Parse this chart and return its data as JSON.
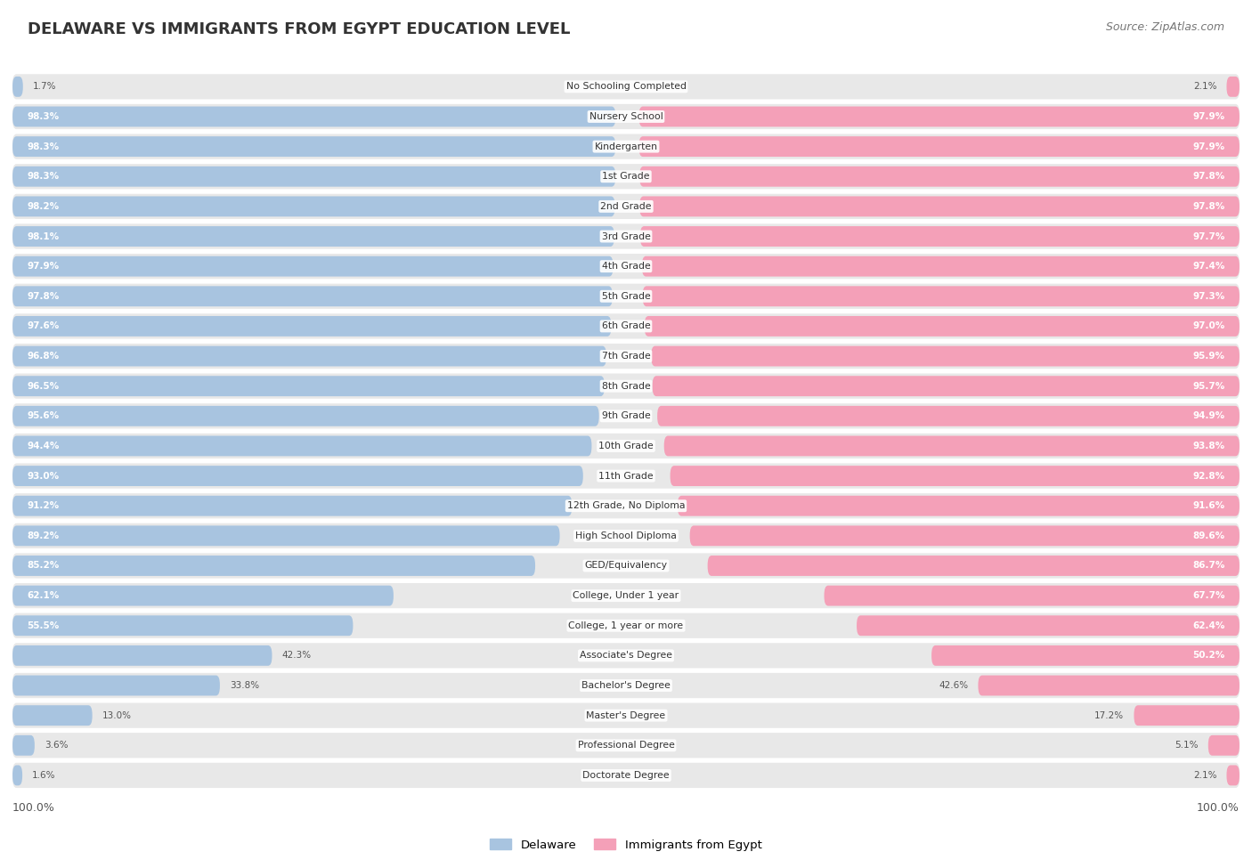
{
  "title": "DELAWARE VS IMMIGRANTS FROM EGYPT EDUCATION LEVEL",
  "source": "Source: ZipAtlas.com",
  "categories": [
    "No Schooling Completed",
    "Nursery School",
    "Kindergarten",
    "1st Grade",
    "2nd Grade",
    "3rd Grade",
    "4th Grade",
    "5th Grade",
    "6th Grade",
    "7th Grade",
    "8th Grade",
    "9th Grade",
    "10th Grade",
    "11th Grade",
    "12th Grade, No Diploma",
    "High School Diploma",
    "GED/Equivalency",
    "College, Under 1 year",
    "College, 1 year or more",
    "Associate's Degree",
    "Bachelor's Degree",
    "Master's Degree",
    "Professional Degree",
    "Doctorate Degree"
  ],
  "delaware": [
    1.7,
    98.3,
    98.3,
    98.3,
    98.2,
    98.1,
    97.9,
    97.8,
    97.6,
    96.8,
    96.5,
    95.6,
    94.4,
    93.0,
    91.2,
    89.2,
    85.2,
    62.1,
    55.5,
    42.3,
    33.8,
    13.0,
    3.6,
    1.6
  ],
  "egypt": [
    2.1,
    97.9,
    97.9,
    97.8,
    97.8,
    97.7,
    97.4,
    97.3,
    97.0,
    95.9,
    95.7,
    94.9,
    93.8,
    92.8,
    91.6,
    89.6,
    86.7,
    67.7,
    62.4,
    50.2,
    42.6,
    17.2,
    5.1,
    2.1
  ],
  "delaware_color": "#a8c4e0",
  "egypt_color": "#f4a0b8",
  "bar_bg_color": "#e8e8e8",
  "legend_delaware": "Delaware",
  "legend_egypt": "Immigrants from Egypt",
  "total_width": 100.0,
  "label_threshold": 50.0
}
